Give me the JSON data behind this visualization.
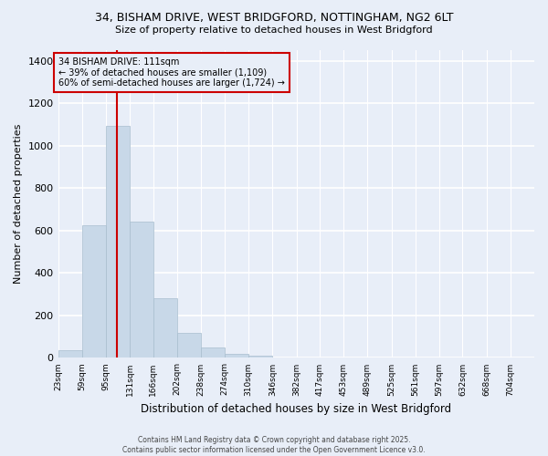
{
  "title_line1": "34, BISHAM DRIVE, WEST BRIDGFORD, NOTTINGHAM, NG2 6LT",
  "title_line2": "Size of property relative to detached houses in West Bridgford",
  "xlabel": "Distribution of detached houses by size in West Bridgford",
  "ylabel": "Number of detached properties",
  "bar_color": "#c8d8e8",
  "bar_edge_color": "#a8bece",
  "background_color": "#e8eef8",
  "grid_color": "#ffffff",
  "annotation_box_color": "#cc0000",
  "vline_color": "#cc0000",
  "annotation_text": "34 BISHAM DRIVE: 111sqm\n← 39% of detached houses are smaller (1,109)\n60% of semi-detached houses are larger (1,724) →",
  "property_size": 111,
  "footer_line1": "Contains HM Land Registry data © Crown copyright and database right 2025.",
  "footer_line2": "Contains public sector information licensed under the Open Government Licence v3.0.",
  "bins": [
    23,
    59,
    95,
    131,
    166,
    202,
    238,
    274,
    310,
    346,
    382,
    417,
    453,
    489,
    525,
    561,
    597,
    632,
    668,
    704,
    740
  ],
  "counts": [
    35,
    625,
    1095,
    640,
    280,
    120,
    50,
    20,
    10,
    0,
    0,
    0,
    0,
    0,
    0,
    0,
    0,
    0,
    0,
    0
  ],
  "ylim": [
    0,
    1450
  ],
  "yticks": [
    0,
    200,
    400,
    600,
    800,
    1000,
    1200,
    1400
  ]
}
